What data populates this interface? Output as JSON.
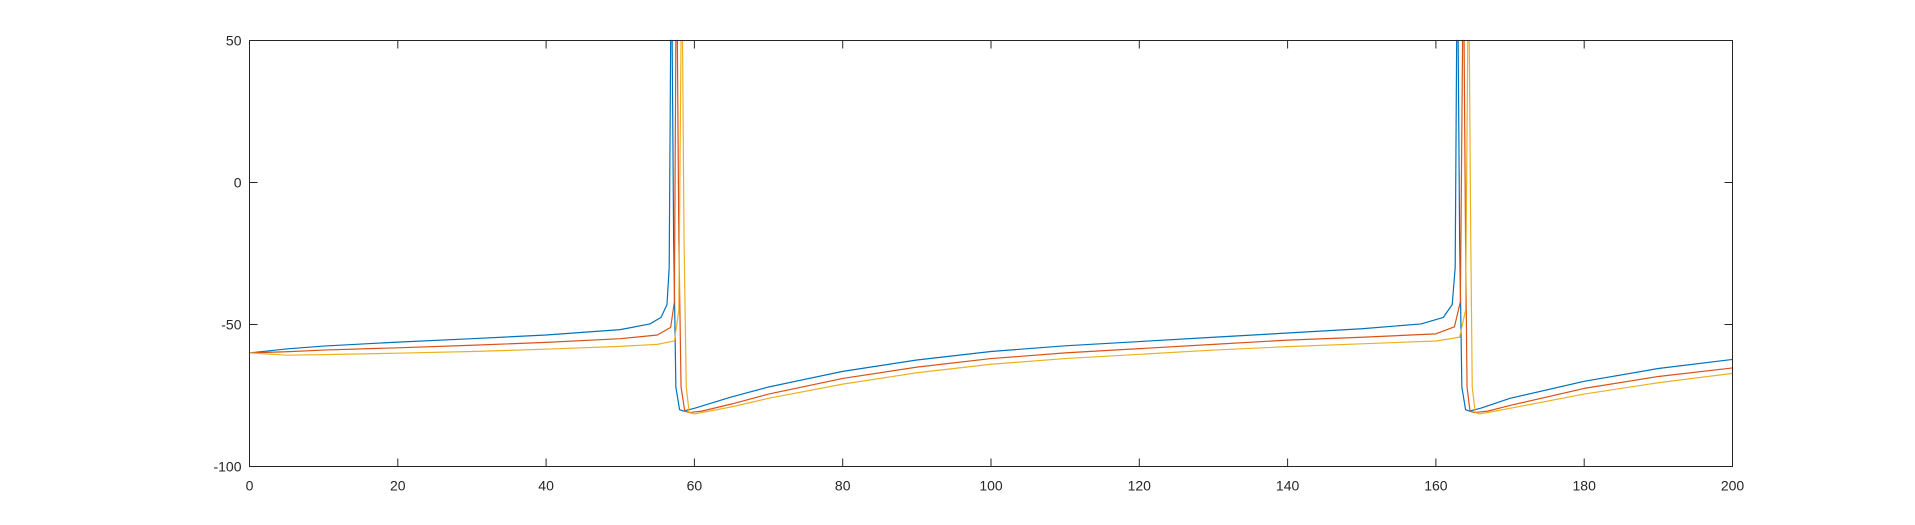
{
  "chart_data": {
    "type": "line",
    "title": "",
    "xlabel": "",
    "ylabel": "",
    "xlim": [
      0,
      200
    ],
    "ylim": [
      -100,
      50
    ],
    "xticks": [
      0,
      20,
      40,
      60,
      80,
      100,
      120,
      140,
      160,
      180,
      200
    ],
    "yticks": [
      -100,
      -50,
      0,
      50
    ],
    "xtick_labels": [
      "0",
      "20",
      "40",
      "60",
      "80",
      "100",
      "120",
      "140",
      "160",
      "180",
      "200"
    ],
    "ytick_labels": [
      "-100",
      "-50",
      "0",
      "50"
    ],
    "grid": false,
    "legend": "none",
    "series": [
      {
        "color": "#0072BD",
        "x": [
          0,
          5,
          10,
          20,
          30,
          40,
          50,
          54,
          55.5,
          56.3,
          56.6,
          56.8,
          57.0,
          57.2,
          57.5,
          58.0,
          58.5,
          60,
          65,
          70,
          80,
          90,
          100,
          110,
          120,
          130,
          140,
          150,
          158,
          161,
          162.2,
          162.6,
          162.8,
          163.0,
          163.2,
          163.5,
          164.0,
          164.5,
          166,
          170,
          180,
          190,
          200
        ],
        "y": [
          -60,
          -58.6,
          -57.6,
          -56.2,
          -55,
          -53.7,
          -51.8,
          -49.8,
          -47.5,
          -43,
          -30,
          50,
          50,
          -20,
          -72,
          -80,
          -80.5,
          -79.5,
          -75.5,
          -72,
          -66.5,
          -62.5,
          -59.5,
          -57.5,
          -56,
          -54.5,
          -53,
          -51.5,
          -49.8,
          -47.5,
          -43,
          -30,
          50,
          50,
          -20,
          -72,
          -80,
          -80.5,
          -79.5,
          -76,
          -70,
          -65.5,
          -62.3
        ]
      },
      {
        "color": "#D95319",
        "x": [
          0,
          5,
          10,
          20,
          30,
          40,
          50,
          55,
          56.8,
          57.3,
          57.5,
          57.7,
          57.9,
          58.2,
          58.7,
          59.3,
          61,
          65,
          70,
          80,
          90,
          100,
          110,
          120,
          130,
          140,
          150,
          160,
          162.5,
          163.3,
          163.6,
          163.8,
          164.0,
          164.2,
          164.6,
          165.2,
          167,
          170,
          180,
          190,
          200
        ],
        "y": [
          -60,
          -59.6,
          -59,
          -58.2,
          -57.3,
          -56.3,
          -55,
          -53.7,
          -51,
          -42,
          50,
          50,
          -20,
          -72,
          -80.5,
          -81,
          -80.5,
          -78,
          -74.5,
          -69,
          -65,
          -62,
          -60,
          -58.5,
          -57,
          -55.5,
          -54.5,
          -53.3,
          -50.8,
          -42,
          50,
          50,
          -20,
          -72,
          -80.5,
          -81,
          -80.5,
          -78.5,
          -72.5,
          -68.3,
          -65.3
        ]
      },
      {
        "color": "#EDB120",
        "x": [
          0,
          5,
          10,
          20,
          30,
          40,
          50,
          55,
          57.3,
          57.9,
          58.2,
          58.4,
          58.6,
          58.9,
          59.3,
          60.0,
          62,
          65,
          70,
          80,
          90,
          100,
          110,
          120,
          130,
          140,
          150,
          160,
          163.2,
          164.0,
          164.3,
          164.5,
          164.7,
          164.9,
          165.3,
          165.9,
          168,
          170,
          180,
          190,
          200
        ],
        "y": [
          -60,
          -60.8,
          -60.6,
          -60.1,
          -59.5,
          -58.7,
          -57.7,
          -57,
          -55.8,
          -45,
          50,
          50,
          -20,
          -72,
          -81,
          -81.5,
          -80.5,
          -79,
          -76,
          -71,
          -67,
          -64,
          -62,
          -60.5,
          -59,
          -57.8,
          -56.8,
          -55.8,
          -54.5,
          -45,
          50,
          50,
          -20,
          -72,
          -81,
          -81.5,
          -80.5,
          -79.5,
          -74.5,
          -70.5,
          -67.2
        ]
      }
    ]
  }
}
